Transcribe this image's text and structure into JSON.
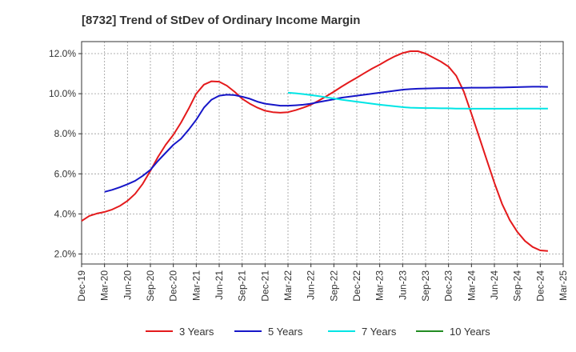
{
  "chart_data": {
    "type": "line",
    "title": "[8732]  Trend of StDev of Ordinary Income Margin",
    "xlabel": "",
    "ylabel": "",
    "x_ticks": [
      "Dec-19",
      "Mar-20",
      "Jun-20",
      "Sep-20",
      "Dec-20",
      "Mar-21",
      "Jun-21",
      "Sep-21",
      "Dec-21",
      "Mar-22",
      "Jun-22",
      "Sep-22",
      "Dec-22",
      "Mar-23",
      "Jun-23",
      "Sep-23",
      "Dec-23",
      "Mar-24",
      "Jun-24",
      "Sep-24",
      "Dec-24",
      "Mar-25"
    ],
    "y_ticks": [
      "2.0%",
      "4.0%",
      "6.0%",
      "8.0%",
      "10.0%",
      "12.0%"
    ],
    "y_tick_values": [
      2,
      4,
      6,
      8,
      10,
      12
    ],
    "ylim": [
      1.5,
      12.6
    ],
    "grid": true,
    "legend_position": "bottom",
    "series": [
      {
        "name": "3 Years",
        "color": "#e41a1c",
        "points": [
          [
            "Dec-19",
            3.65
          ],
          [
            "Jan-20",
            3.9
          ],
          [
            "Feb-20",
            4.02
          ],
          [
            "Mar-20",
            4.1
          ],
          [
            "Apr-20",
            4.22
          ],
          [
            "May-20",
            4.4
          ],
          [
            "Jun-20",
            4.65
          ],
          [
            "Jul-20",
            5.0
          ],
          [
            "Aug-20",
            5.5
          ],
          [
            "Sep-20",
            6.15
          ],
          [
            "Oct-20",
            6.85
          ],
          [
            "Nov-20",
            7.45
          ],
          [
            "Dec-20",
            7.95
          ],
          [
            "Jan-21",
            8.55
          ],
          [
            "Feb-21",
            9.25
          ],
          [
            "Mar-21",
            10.0
          ],
          [
            "Apr-21",
            10.45
          ],
          [
            "May-21",
            10.62
          ],
          [
            "Jun-21",
            10.6
          ],
          [
            "Jul-21",
            10.4
          ],
          [
            "Aug-21",
            10.1
          ],
          [
            "Sep-21",
            9.75
          ],
          [
            "Oct-21",
            9.5
          ],
          [
            "Nov-21",
            9.3
          ],
          [
            "Dec-21",
            9.15
          ],
          [
            "Jan-22",
            9.08
          ],
          [
            "Feb-22",
            9.05
          ],
          [
            "Mar-22",
            9.08
          ],
          [
            "Apr-22",
            9.18
          ],
          [
            "May-22",
            9.3
          ],
          [
            "Jun-22",
            9.45
          ],
          [
            "Jul-22",
            9.65
          ],
          [
            "Aug-22",
            9.87
          ],
          [
            "Sep-22",
            10.1
          ],
          [
            "Oct-22",
            10.35
          ],
          [
            "Nov-22",
            10.58
          ],
          [
            "Dec-22",
            10.8
          ],
          [
            "Jan-23",
            11.03
          ],
          [
            "Feb-23",
            11.25
          ],
          [
            "Mar-23",
            11.45
          ],
          [
            "Apr-23",
            11.67
          ],
          [
            "May-23",
            11.87
          ],
          [
            "Jun-23",
            12.03
          ],
          [
            "Jul-23",
            12.12
          ],
          [
            "Aug-23",
            12.12
          ],
          [
            "Sep-23",
            12.0
          ],
          [
            "Oct-23",
            11.8
          ],
          [
            "Nov-23",
            11.6
          ],
          [
            "Dec-23",
            11.35
          ],
          [
            "Jan-24",
            10.9
          ],
          [
            "Feb-24",
            10.1
          ],
          [
            "Mar-24",
            9.0
          ],
          [
            "Apr-24",
            7.85
          ],
          [
            "May-24",
            6.7
          ],
          [
            "Jun-24",
            5.55
          ],
          [
            "Jul-24",
            4.5
          ],
          [
            "Aug-24",
            3.7
          ],
          [
            "Sep-24",
            3.1
          ],
          [
            "Oct-24",
            2.65
          ],
          [
            "Nov-24",
            2.35
          ],
          [
            "Dec-24",
            2.18
          ],
          [
            "Jan-25",
            2.15
          ]
        ]
      },
      {
        "name": "5 Years",
        "color": "#1616c8",
        "points": [
          [
            "Mar-20",
            5.1
          ],
          [
            "Apr-20",
            5.2
          ],
          [
            "May-20",
            5.33
          ],
          [
            "Jun-20",
            5.48
          ],
          [
            "Jul-20",
            5.65
          ],
          [
            "Aug-20",
            5.9
          ],
          [
            "Sep-20",
            6.2
          ],
          [
            "Oct-20",
            6.65
          ],
          [
            "Nov-20",
            7.05
          ],
          [
            "Dec-20",
            7.45
          ],
          [
            "Jan-21",
            7.75
          ],
          [
            "Feb-21",
            8.2
          ],
          [
            "Mar-21",
            8.7
          ],
          [
            "Apr-21",
            9.3
          ],
          [
            "May-21",
            9.7
          ],
          [
            "Jun-21",
            9.9
          ],
          [
            "Jul-21",
            9.95
          ],
          [
            "Aug-21",
            9.93
          ],
          [
            "Sep-21",
            9.85
          ],
          [
            "Oct-21",
            9.75
          ],
          [
            "Nov-21",
            9.6
          ],
          [
            "Dec-21",
            9.5
          ],
          [
            "Jan-22",
            9.45
          ],
          [
            "Feb-22",
            9.4
          ],
          [
            "Mar-22",
            9.4
          ],
          [
            "Apr-22",
            9.42
          ],
          [
            "May-22",
            9.45
          ],
          [
            "Jun-22",
            9.5
          ],
          [
            "Jul-22",
            9.58
          ],
          [
            "Aug-22",
            9.65
          ],
          [
            "Sep-22",
            9.72
          ],
          [
            "Oct-22",
            9.8
          ],
          [
            "Nov-22",
            9.85
          ],
          [
            "Dec-22",
            9.9
          ],
          [
            "Jan-23",
            9.95
          ],
          [
            "Feb-23",
            10.0
          ],
          [
            "Mar-23",
            10.05
          ],
          [
            "Apr-23",
            10.1
          ],
          [
            "May-23",
            10.15
          ],
          [
            "Jun-23",
            10.2
          ],
          [
            "Jul-23",
            10.23
          ],
          [
            "Aug-23",
            10.25
          ],
          [
            "Sep-23",
            10.26
          ],
          [
            "Oct-23",
            10.27
          ],
          [
            "Nov-23",
            10.28
          ],
          [
            "Dec-23",
            10.28
          ],
          [
            "Jan-24",
            10.29
          ],
          [
            "Feb-24",
            10.29
          ],
          [
            "Mar-24",
            10.3
          ],
          [
            "Apr-24",
            10.3
          ],
          [
            "May-24",
            10.3
          ],
          [
            "Jun-24",
            10.31
          ],
          [
            "Jul-24",
            10.31
          ],
          [
            "Aug-24",
            10.32
          ],
          [
            "Sep-24",
            10.33
          ],
          [
            "Oct-24",
            10.34
          ],
          [
            "Nov-24",
            10.35
          ],
          [
            "Dec-24",
            10.35
          ],
          [
            "Jan-25",
            10.34
          ]
        ]
      },
      {
        "name": "7 Years",
        "color": "#00e5e5",
        "points": [
          [
            "Mar-22",
            10.05
          ],
          [
            "Apr-22",
            10.02
          ],
          [
            "May-22",
            9.98
          ],
          [
            "Jun-22",
            9.93
          ],
          [
            "Jul-22",
            9.88
          ],
          [
            "Aug-22",
            9.82
          ],
          [
            "Sep-22",
            9.76
          ],
          [
            "Oct-22",
            9.7
          ],
          [
            "Nov-22",
            9.65
          ],
          [
            "Dec-22",
            9.6
          ],
          [
            "Jan-23",
            9.55
          ],
          [
            "Feb-23",
            9.5
          ],
          [
            "Mar-23",
            9.45
          ],
          [
            "Apr-23",
            9.41
          ],
          [
            "May-23",
            9.37
          ],
          [
            "Jun-23",
            9.33
          ],
          [
            "Jul-23",
            9.3
          ],
          [
            "Aug-23",
            9.29
          ],
          [
            "Sep-23",
            9.28
          ],
          [
            "Oct-23",
            9.28
          ],
          [
            "Nov-23",
            9.27
          ],
          [
            "Dec-23",
            9.27
          ],
          [
            "Jan-24",
            9.26
          ],
          [
            "Feb-24",
            9.26
          ],
          [
            "Mar-24",
            9.25
          ],
          [
            "Apr-24",
            9.25
          ],
          [
            "May-24",
            9.25
          ],
          [
            "Jun-24",
            9.25
          ],
          [
            "Jul-24",
            9.25
          ],
          [
            "Aug-24",
            9.25
          ],
          [
            "Sep-24",
            9.26
          ],
          [
            "Oct-24",
            9.26
          ],
          [
            "Nov-24",
            9.26
          ],
          [
            "Dec-24",
            9.26
          ],
          [
            "Jan-25",
            9.26
          ]
        ]
      },
      {
        "name": "10 Years",
        "color": "#228b22",
        "points": []
      }
    ]
  }
}
